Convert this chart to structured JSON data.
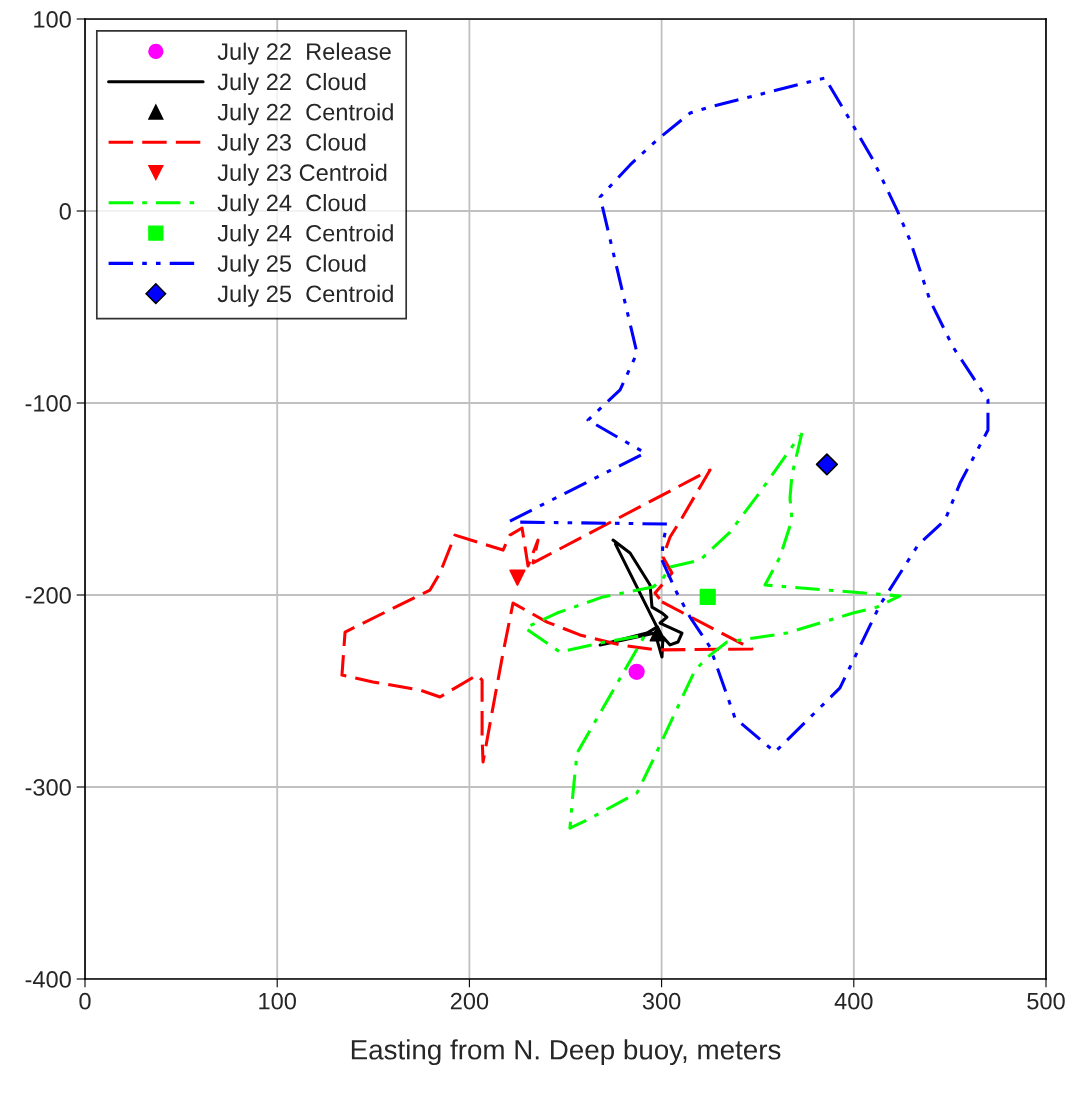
{
  "chart_data": {
    "type": "scatter",
    "xlabel": "Easting from N. Deep buoy, meters",
    "xlim": [
      0,
      500
    ],
    "xticks": [
      0,
      100,
      200,
      300,
      400,
      500
    ],
    "ylim": [
      -400,
      100
    ],
    "yticks": [
      -400,
      -300,
      -200,
      -100,
      0,
      100
    ],
    "grid": true,
    "legend": "top left",
    "series": [
      {
        "name": "July 22  Release",
        "marker": "circle",
        "color": "#ff00ff",
        "x": [
          287
        ],
        "values": [
          -240
        ]
      },
      {
        "name": "July 22  Cloud",
        "type": "line",
        "line_style": "solid",
        "color": "#000000",
        "x": [
          274.7,
          283.6,
          294.0,
          295.0,
          300.2,
          302.8,
          299.2,
          310.6,
          308.5,
          304.4,
          300.7,
          300.2,
          296.6,
          268.0,
          292.4,
          297.6,
          276.0
        ],
        "values": [
          -171.4,
          -178.1,
          -194.8,
          -206.3,
          -209.4,
          -211.5,
          -214.6,
          -219.8,
          -224.5,
          -226.0,
          -221.9,
          -232.3,
          -219.8,
          -226.0,
          -219.8,
          -216.7,
          -173.5
        ]
      },
      {
        "name": "July 22  Centroid",
        "marker": "triangle",
        "color": "#000000",
        "x": [
          298
        ],
        "values": [
          -220
        ]
      },
      {
        "name": "July 23  Cloud",
        "type": "line",
        "line_style": "dashed",
        "color": "#ff0000",
        "x": [
          300.2,
          347.0,
          297.6,
          278.4,
          257.5,
          240.4,
          222.7,
          217.5,
          212.3,
          207.1,
          206.6,
          206.6,
          204.0,
          184.7,
          174.3,
          149.8,
          133.7,
          135.3,
          179.5,
          184.7,
          192.5,
          217.5,
          221.1,
          227.4,
          230.5,
          235.7,
          233.1,
          325.2,
          310.6,
          304.4,
          300.7,
          305.4,
          296.6,
          299.0
        ],
        "values": [
          -203.6,
          -228.1,
          -228.6,
          -226.0,
          -220.8,
          -214.1,
          -204.2,
          -230.2,
          -258.3,
          -287.0,
          -274.0,
          -244.3,
          -241.7,
          -253.1,
          -249.5,
          -245.3,
          -241.7,
          -219.3,
          -197.4,
          -188.5,
          -168.8,
          -176.6,
          -168.8,
          -165.1,
          -184.9,
          -171.4,
          -183.3,
          -134.9,
          -159.9,
          -169.8,
          -180.2,
          -188.5,
          -199.0,
          -202.0
        ]
      },
      {
        "name": "July 23 Centroid",
        "marker": "triangle_down",
        "color": "#ff0000",
        "x": [
          225
        ],
        "values": [
          -191
        ]
      },
      {
        "name": "July 24  Cloud",
        "type": "line",
        "line_style": "dashdot",
        "color": "#00ff00",
        "x": [
          373.0,
          367.8,
          366.8,
          367.8,
          361.6,
          353.8,
          424.0,
          412.1,
          399.6,
          382.4,
          365.2,
          334.0,
          325.2,
          317.4,
          295.5,
          287.2,
          261.2,
          252.3,
          253.9,
          256.0,
          291.4,
          268.0,
          247.1,
          228.9,
          245.6,
          269.5,
          295.5,
          300.2,
          304.4,
          320.0,
          335.6,
          351.2,
          372.0
        ],
        "values": [
          -115.6,
          -137.5,
          -149.5,
          -160.9,
          -180.2,
          -194.8,
          -200.5,
          -206.3,
          -209.4,
          -214.6,
          -219.8,
          -224.5,
          -231.3,
          -239.1,
          -286.0,
          -303.1,
          -317.2,
          -321.4,
          -303.1,
          -282.3,
          -220.8,
          -225.0,
          -229.7,
          -217.2,
          -209.4,
          -201.0,
          -195.8,
          -192.2,
          -185.4,
          -181.8,
          -167.2,
          -146.4,
          -117.0
        ]
      },
      {
        "name": "July 24  Centroid",
        "marker": "square",
        "color": "#00ff00",
        "x": [
          324
        ],
        "values": [
          -201
        ]
      },
      {
        "name": "July 25  Cloud",
        "type": "line",
        "line_style": "dashdotdot",
        "color": "#0000ff",
        "x": [
          221.1,
          291.4,
          261.7,
          278.4,
          287.2,
          268.0,
          283.6,
          297.6,
          314.8,
          325.2,
          385.0,
          398.0,
          410.0,
          422.5,
          429.2,
          439.6,
          451.6,
          469.8,
          469.8,
          455.3,
          447.5,
          433.4,
          413.6,
          392.8,
          359.0,
          338.2,
          325.2,
          314.8,
          308.0,
          300.2,
          300.7,
          302.8,
          223.0
        ],
        "values": [
          -161.5,
          -126.0,
          -108.9,
          -93.2,
          -74.0,
          7.3,
          24.0,
          37.0,
          51.0,
          54.2,
          69.3,
          47.4,
          26.6,
          0.5,
          -15.1,
          -46.4,
          -70.8,
          -98.4,
          -114.1,
          -141.7,
          -160.9,
          -174.0,
          -205.2,
          -248.4,
          -281.8,
          -264.1,
          -227.1,
          -211.5,
          -199.0,
          -181.8,
          -172.9,
          -163.0,
          -162.0
        ]
      },
      {
        "name": "July 25  Centroid",
        "marker": "diamond",
        "color": "#0000ff",
        "x": [
          386
        ],
        "values": [
          -132
        ]
      }
    ]
  }
}
